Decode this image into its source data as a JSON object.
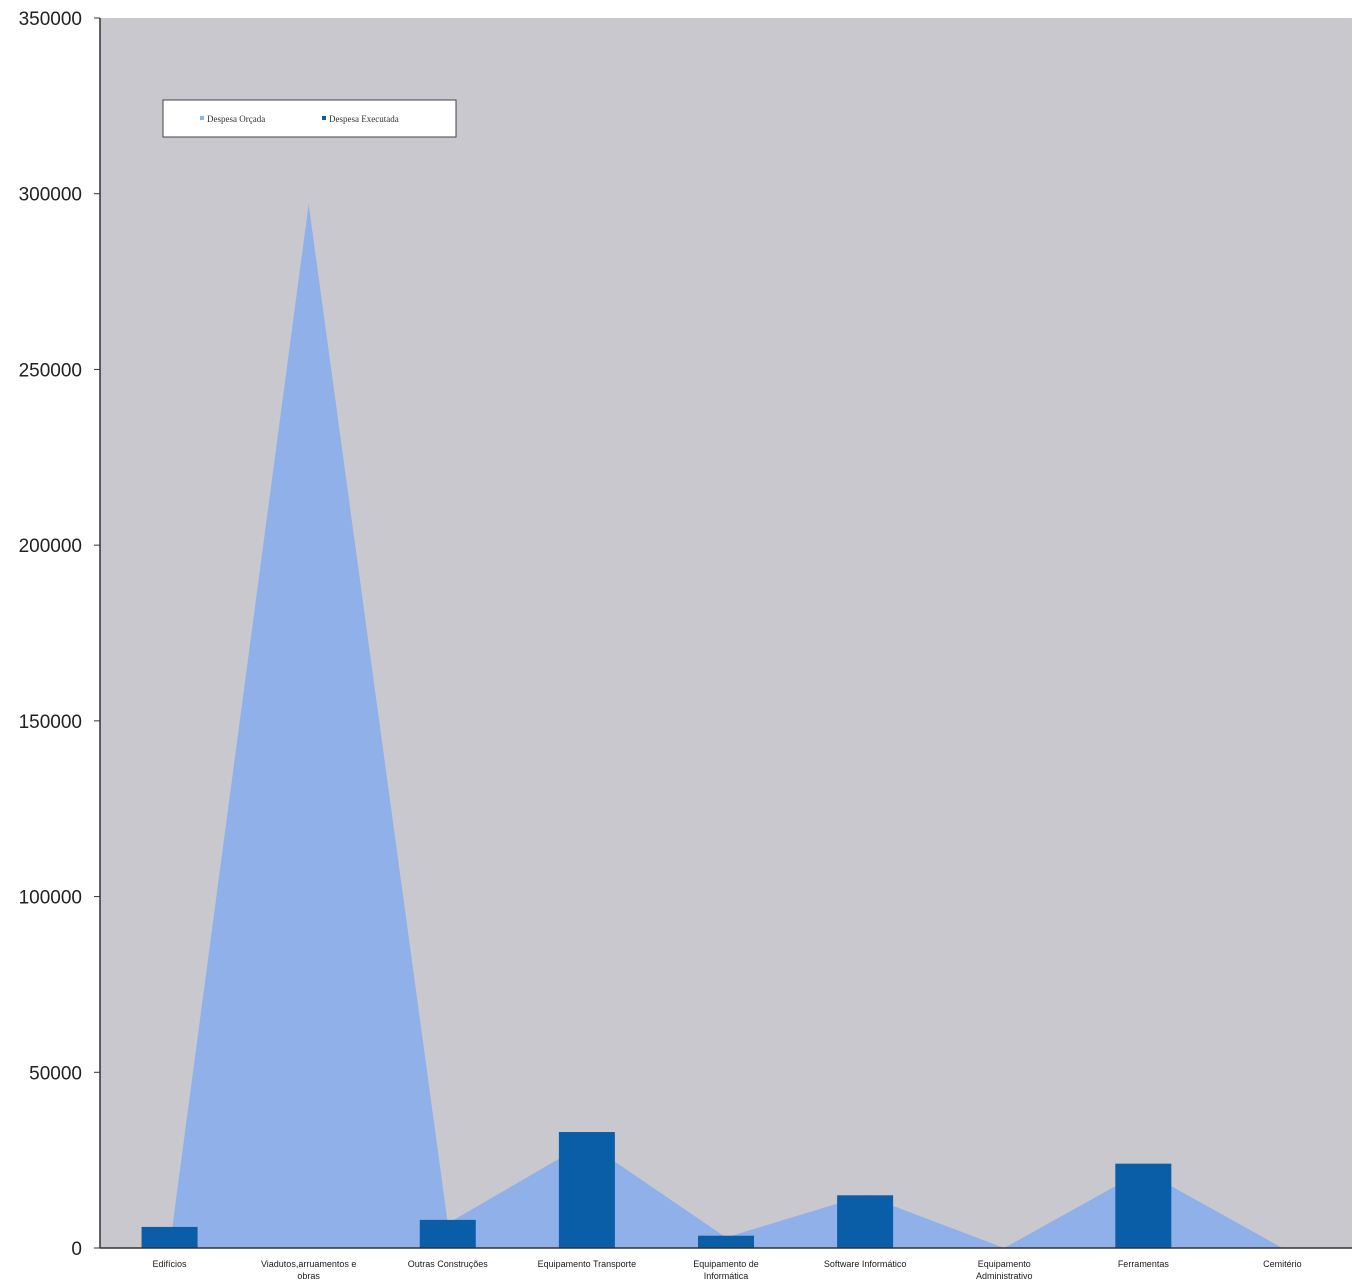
{
  "chart_data": {
    "type": "area",
    "categories": [
      "Edifícios",
      "Viadutos,arruamentos e obras",
      "Outras Construções",
      "Equipamento Transporte",
      "Equipamento de Informática",
      "Software Informático",
      "Equipamento Administrativo",
      "Ferramentas",
      "Cemitério"
    ],
    "series": [
      {
        "name": "Despesa Orçada",
        "kind": "area",
        "color": "#8fb0e8",
        "values": [
          0,
          297000,
          7000,
          30000,
          3000,
          15000,
          0,
          22000,
          0
        ]
      },
      {
        "name": "Despesa Executada",
        "kind": "bar",
        "color": "#0a5ea8",
        "values": [
          6000,
          0,
          8000,
          33000,
          3500,
          15000,
          0,
          24000,
          0
        ]
      }
    ],
    "ylim": [
      0,
      350000
    ],
    "yticks": [
      "0",
      "50000",
      "100000",
      "150000",
      "200000",
      "250000",
      "300000",
      "350000"
    ],
    "grid": false,
    "legend_position": "top-left",
    "plot_background": "#c9c8ce"
  }
}
